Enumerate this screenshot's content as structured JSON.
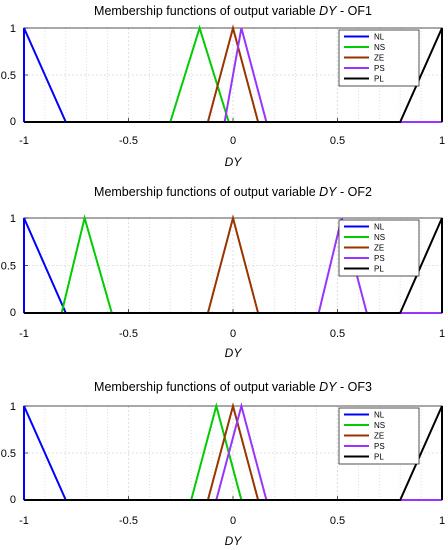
{
  "chart_data": [
    {
      "type": "line",
      "title_prefix": "Membership functions of output variable ",
      "title_var": "DY",
      "title_suffix": " - OF1",
      "xlabel": "DY",
      "xlim": [
        -1,
        1
      ],
      "ylim": [
        0,
        1
      ],
      "xticks": [
        -1,
        -0.5,
        0,
        0.5,
        1
      ],
      "xtick_labels": [
        "-1",
        "-0.5",
        "0",
        "0.5",
        "1"
      ],
      "yticks": [
        0,
        0.5,
        1
      ],
      "ytick_labels": [
        "0",
        "0.5",
        "1"
      ],
      "grid": true,
      "legend_position": "top-right",
      "series": [
        {
          "name": "NL",
          "color": "#0000ff",
          "x": [
            -1,
            -1,
            -0.8,
            1
          ],
          "y": [
            0,
            1,
            0,
            0
          ]
        },
        {
          "name": "NS",
          "color": "#00cc00",
          "x": [
            -1,
            -0.3,
            -0.16,
            -0.02,
            1
          ],
          "y": [
            0,
            0,
            1,
            0,
            0
          ]
        },
        {
          "name": "ZE",
          "color": "#993300",
          "x": [
            -1,
            -0.12,
            0,
            0.12,
            1
          ],
          "y": [
            0,
            0,
            1,
            0,
            0
          ]
        },
        {
          "name": "PS",
          "color": "#9933ff",
          "x": [
            -1,
            -0.04,
            0.04,
            0.16,
            1
          ],
          "y": [
            0,
            0,
            1,
            0,
            0
          ]
        },
        {
          "name": "PL",
          "color": "#000000",
          "x": [
            -1,
            0.8,
            1,
            1
          ],
          "y": [
            0,
            0,
            1,
            0
          ]
        }
      ]
    },
    {
      "type": "line",
      "title_prefix": "Membership functions of output variable ",
      "title_var": "DY",
      "title_suffix": " - OF2",
      "xlabel": "DY",
      "xlim": [
        -1,
        1
      ],
      "ylim": [
        0,
        1
      ],
      "xticks": [
        -1,
        -0.5,
        0,
        0.5,
        1
      ],
      "xtick_labels": [
        "-1",
        "-0.5",
        "0",
        "0.5",
        "1"
      ],
      "yticks": [
        0,
        0.5,
        1
      ],
      "ytick_labels": [
        "0",
        "0.5",
        "1"
      ],
      "grid": true,
      "legend_position": "top-right",
      "series": [
        {
          "name": "NL",
          "color": "#0000ff",
          "x": [
            -1,
            -1,
            -0.8,
            1
          ],
          "y": [
            0,
            1,
            0,
            0
          ]
        },
        {
          "name": "NS",
          "color": "#00cc00",
          "x": [
            -1,
            -0.82,
            -0.71,
            -0.58,
            1
          ],
          "y": [
            0,
            0,
            1,
            0,
            0
          ]
        },
        {
          "name": "ZE",
          "color": "#993300",
          "x": [
            -1,
            -0.12,
            0,
            0.12,
            1
          ],
          "y": [
            0,
            0,
            1,
            0,
            0
          ]
        },
        {
          "name": "PS",
          "color": "#9933ff",
          "x": [
            -1,
            0.41,
            0.52,
            0.64,
            1
          ],
          "y": [
            0,
            0,
            1,
            0,
            0
          ]
        },
        {
          "name": "PL",
          "color": "#000000",
          "x": [
            -1,
            0.8,
            1,
            1
          ],
          "y": [
            0,
            0,
            1,
            0
          ]
        }
      ]
    },
    {
      "type": "line",
      "title_prefix": "Membership functions of output variable ",
      "title_var": "DY",
      "title_suffix": " - OF3",
      "xlabel": "DY",
      "xlim": [
        -1,
        1
      ],
      "ylim": [
        0,
        1
      ],
      "xticks": [
        -1,
        -0.5,
        0,
        0.5,
        1
      ],
      "xtick_labels": [
        "-1",
        "-0.5",
        "0",
        "0.5",
        "1"
      ],
      "yticks": [
        0,
        0.5,
        1
      ],
      "ytick_labels": [
        "0",
        "0.5",
        "1"
      ],
      "grid": true,
      "legend_position": "top-right",
      "series": [
        {
          "name": "NL",
          "color": "#0000ff",
          "x": [
            -1,
            -1,
            -0.8,
            1
          ],
          "y": [
            0,
            1,
            0,
            0
          ]
        },
        {
          "name": "NS",
          "color": "#00cc00",
          "x": [
            -1,
            -0.2,
            -0.08,
            0.04,
            1
          ],
          "y": [
            0,
            0,
            1,
            0,
            0
          ]
        },
        {
          "name": "ZE",
          "color": "#993300",
          "x": [
            -1,
            -0.12,
            0,
            0.12,
            1
          ],
          "y": [
            0,
            0,
            1,
            0,
            0
          ]
        },
        {
          "name": "PS",
          "color": "#9933ff",
          "x": [
            -1,
            -0.08,
            0.04,
            0.16,
            1
          ],
          "y": [
            0,
            0,
            1,
            0,
            0
          ]
        },
        {
          "name": "PL",
          "color": "#000000",
          "x": [
            -1,
            0.8,
            1,
            1
          ],
          "y": [
            0,
            0,
            1,
            0
          ]
        }
      ]
    }
  ]
}
